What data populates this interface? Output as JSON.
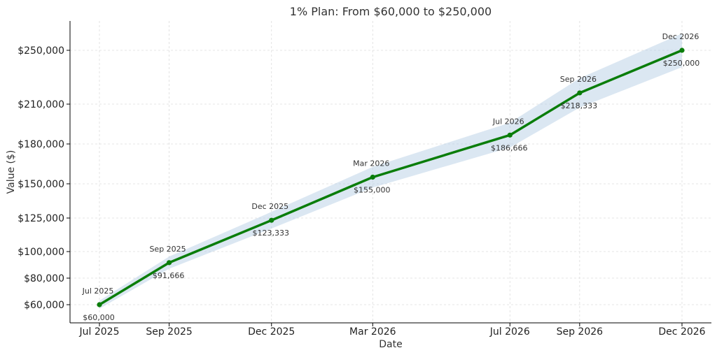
{
  "chart_data": {
    "type": "line",
    "title": "1% Plan: From $60,000 to $250,000",
    "xlabel": "Date",
    "ylabel": "Value ($)",
    "categories": [
      "Jul 2025",
      "Sep 2025",
      "Dec 2025",
      "Mar 2026",
      "Jul 2026",
      "Sep 2026",
      "Dec 2026"
    ],
    "x": [
      "2025-07-01",
      "2025-09-01",
      "2025-12-01",
      "2026-03-01",
      "2026-07-01",
      "2026-09-01",
      "2026-12-01"
    ],
    "series": [
      {
        "values": [
          60000,
          91666,
          123333,
          155000,
          186666,
          218333,
          250000
        ],
        "value_labels": [
          "$60,000",
          "$91,666",
          "$123,333",
          "$155,000",
          "$186,666",
          "$218,333",
          "$250,000"
        ],
        "point_labels": [
          "Jul 2025",
          "Sep 2025",
          "Dec 2025",
          "Mar 2026",
          "Jul 2026",
          "Sep 2026",
          "Dec 2026"
        ],
        "color": "#0a7d0a",
        "band_color": "#b7cfe6",
        "band_half_width_pct": 5
      }
    ],
    "xticks": [
      "Jul 2025",
      "Sep 2025",
      "Dec 2025",
      "Mar 2026",
      "Jul 2026",
      "Sep 2026",
      "Dec 2026"
    ],
    "yticks": [
      60000,
      80000,
      100000,
      125000,
      150000,
      180000,
      210000,
      250000
    ],
    "ytick_labels": [
      "$60,000",
      "$80,000",
      "$100,000",
      "$125,000",
      "$150,000",
      "$180,000",
      "$210,000",
      "$250,000"
    ],
    "grid": true
  }
}
